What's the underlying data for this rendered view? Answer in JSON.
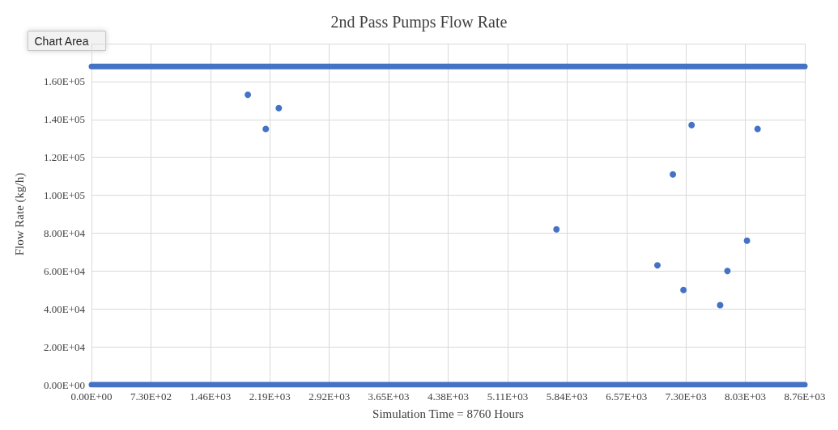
{
  "chart_data": {
    "type": "scatter",
    "title": "2nd Pass Pumps Flow Rate",
    "xlabel": "Simulation Time = 8760 Hours",
    "ylabel": "Flow Rate (kg/h)",
    "annotations": [
      "Chart Area"
    ],
    "xlim": [
      0,
      8760
    ],
    "xticks": [
      {
        "value": 0,
        "label": "0.00E+00"
      },
      {
        "value": 730,
        "label": "7.30E+02"
      },
      {
        "value": 1460,
        "label": "1.46E+03"
      },
      {
        "value": 2190,
        "label": "2.19E+03"
      },
      {
        "value": 2920,
        "label": "2.92E+03"
      },
      {
        "value": 3650,
        "label": "3.65E+03"
      },
      {
        "value": 4380,
        "label": "4.38E+03"
      },
      {
        "value": 5110,
        "label": "5.11E+03"
      },
      {
        "value": 5840,
        "label": "5.84E+03"
      },
      {
        "value": 6570,
        "label": "6.57E+03"
      },
      {
        "value": 7300,
        "label": "7.30E+03"
      },
      {
        "value": 8030,
        "label": "8.03E+03"
      },
      {
        "value": 8760,
        "label": "8.76E+03"
      }
    ],
    "ylim": [
      0,
      180000
    ],
    "yticks": [
      {
        "value": 0,
        "label": "0.00E+00"
      },
      {
        "value": 20000,
        "label": "2.00E+04"
      },
      {
        "value": 40000,
        "label": "4.00E+04"
      },
      {
        "value": 60000,
        "label": "6.00E+04"
      },
      {
        "value": 80000,
        "label": "8.00E+04"
      },
      {
        "value": 100000,
        "label": "1.00E+05"
      },
      {
        "value": 120000,
        "label": "1.20E+05"
      },
      {
        "value": 140000,
        "label": "1.40E+05"
      },
      {
        "value": 160000,
        "label": "1.60E+05"
      },
      {
        "value": 180000,
        "label": null
      }
    ],
    "grid": true,
    "marker": "circle",
    "series": [
      {
        "type": "line",
        "marker": "none",
        "color": "#4472c4",
        "x": [
          0,
          8760
        ],
        "values": [
          168000,
          168000
        ]
      },
      {
        "type": "line",
        "marker": "none",
        "color": "#4472c4",
        "x": [
          0,
          8760
        ],
        "values": [
          0,
          0
        ]
      },
      {
        "color": "#4472c4",
        "x": [
          1920,
          2140,
          2300,
          5710,
          6950,
          7140,
          7270,
          7370,
          7720,
          7810,
          8050,
          8180
        ],
        "values": [
          153000,
          135000,
          146000,
          82000,
          63000,
          111000,
          50000,
          137000,
          42000,
          60000,
          76000,
          135000
        ]
      }
    ]
  }
}
